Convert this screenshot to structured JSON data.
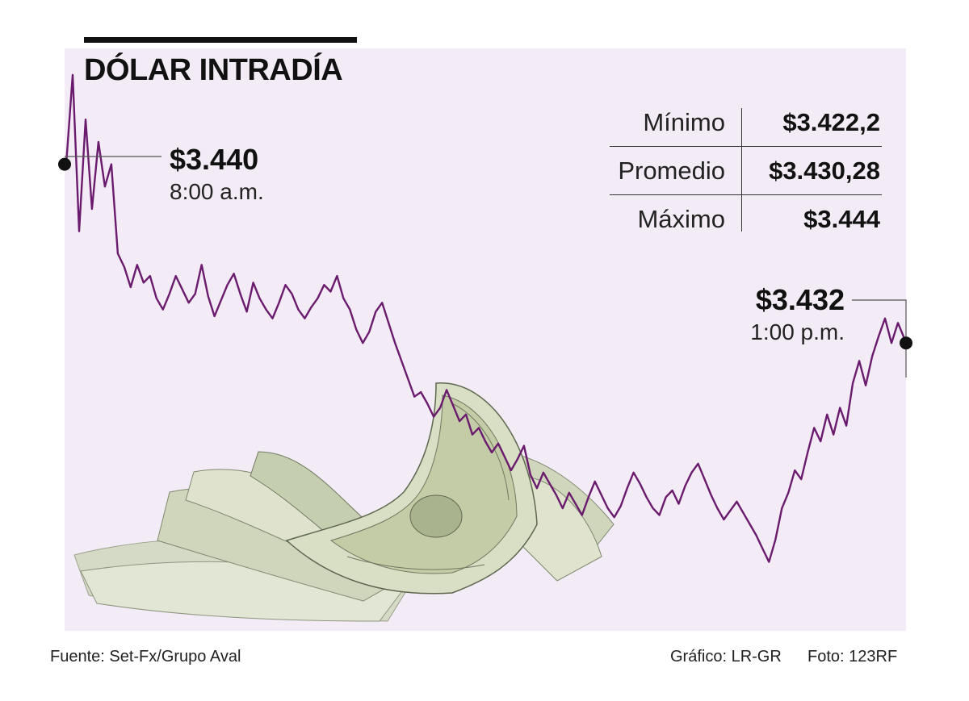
{
  "title": "DÓLAR INTRADÍA",
  "open_callout": {
    "value": "$3.440",
    "time": "8:00 a.m."
  },
  "close_callout": {
    "value": "$3.432",
    "time": "1:00 p.m."
  },
  "stats": [
    {
      "label": "Mínimo",
      "value": "$3.422,2"
    },
    {
      "label": "Promedio",
      "value": "$3.430,28"
    },
    {
      "label": "Máximo",
      "value": "$3.444"
    }
  ],
  "footer": {
    "source": "Fuente: Set-Fx/Grupo Aval",
    "graphic": "Gráfico: LR-GR",
    "photo": "Foto: 123RF"
  },
  "colors": {
    "line": "#6a1b6e",
    "area": "#f3ebf5",
    "marker": "#111111"
  },
  "chart_data": {
    "type": "area",
    "title": "DÓLAR INTRADÍA",
    "xlabel": "",
    "ylabel": "",
    "x_range": [
      "8:00 a.m.",
      "1:00 p.m."
    ],
    "ylim": [
      3421.5,
      3444.5
    ],
    "open": 3440,
    "close": 3432,
    "min": 3422.2,
    "avg": 3430.28,
    "max": 3444,
    "grid": false,
    "legend": "none",
    "series": [
      {
        "values": [
          3440,
          3444,
          3437,
          3442,
          3438,
          3441,
          3439,
          3440,
          3436,
          3435.4,
          3434.5,
          3435.5,
          3434.7,
          3435,
          3434,
          3433.5,
          3434.2,
          3435,
          3434.4,
          3433.8,
          3434.2,
          3435.5,
          3434.1,
          3433.2,
          3433.9,
          3434.6,
          3435.1,
          3434.2,
          3433.4,
          3434.7,
          3434,
          3433.5,
          3433.1,
          3433.8,
          3434.6,
          3434.2,
          3433.5,
          3433.1,
          3433.6,
          3434,
          3434.6,
          3434.3,
          3435,
          3434,
          3433.5,
          3432.6,
          3432,
          3432.5,
          3433.4,
          3433.8,
          3432.9,
          3432,
          3431.2,
          3430.4,
          3429.6,
          3429.8,
          3429.3,
          3428.7,
          3429.1,
          3429.9,
          3429.2,
          3428.5,
          3428.8,
          3427.9,
          3428.2,
          3427.6,
          3427.1,
          3427.5,
          3426.9,
          3426.3,
          3426.8,
          3427.4,
          3426.1,
          3425.5,
          3426.2,
          3425.7,
          3425.2,
          3424.6,
          3425.3,
          3424.8,
          3424.3,
          3425.1,
          3425.8,
          3425.2,
          3424.6,
          3424.2,
          3424.7,
          3425.5,
          3426.2,
          3425.7,
          3425.1,
          3424.6,
          3424.3,
          3425.1,
          3425.4,
          3424.8,
          3425.6,
          3426.2,
          3426.6,
          3425.9,
          3425.2,
          3424.6,
          3424.1,
          3424.5,
          3424.9,
          3424.4,
          3423.9,
          3423.4,
          3422.8,
          3422.2,
          3423.2,
          3424.6,
          3425.3,
          3426.3,
          3425.9,
          3427.1,
          3428.2,
          3427.6,
          3428.8,
          3427.9,
          3429.1,
          3428.3,
          3430.2,
          3431.2,
          3430.1,
          3431.4,
          3432.3,
          3433.1,
          3432,
          3432.9,
          3432.2
        ]
      }
    ]
  }
}
